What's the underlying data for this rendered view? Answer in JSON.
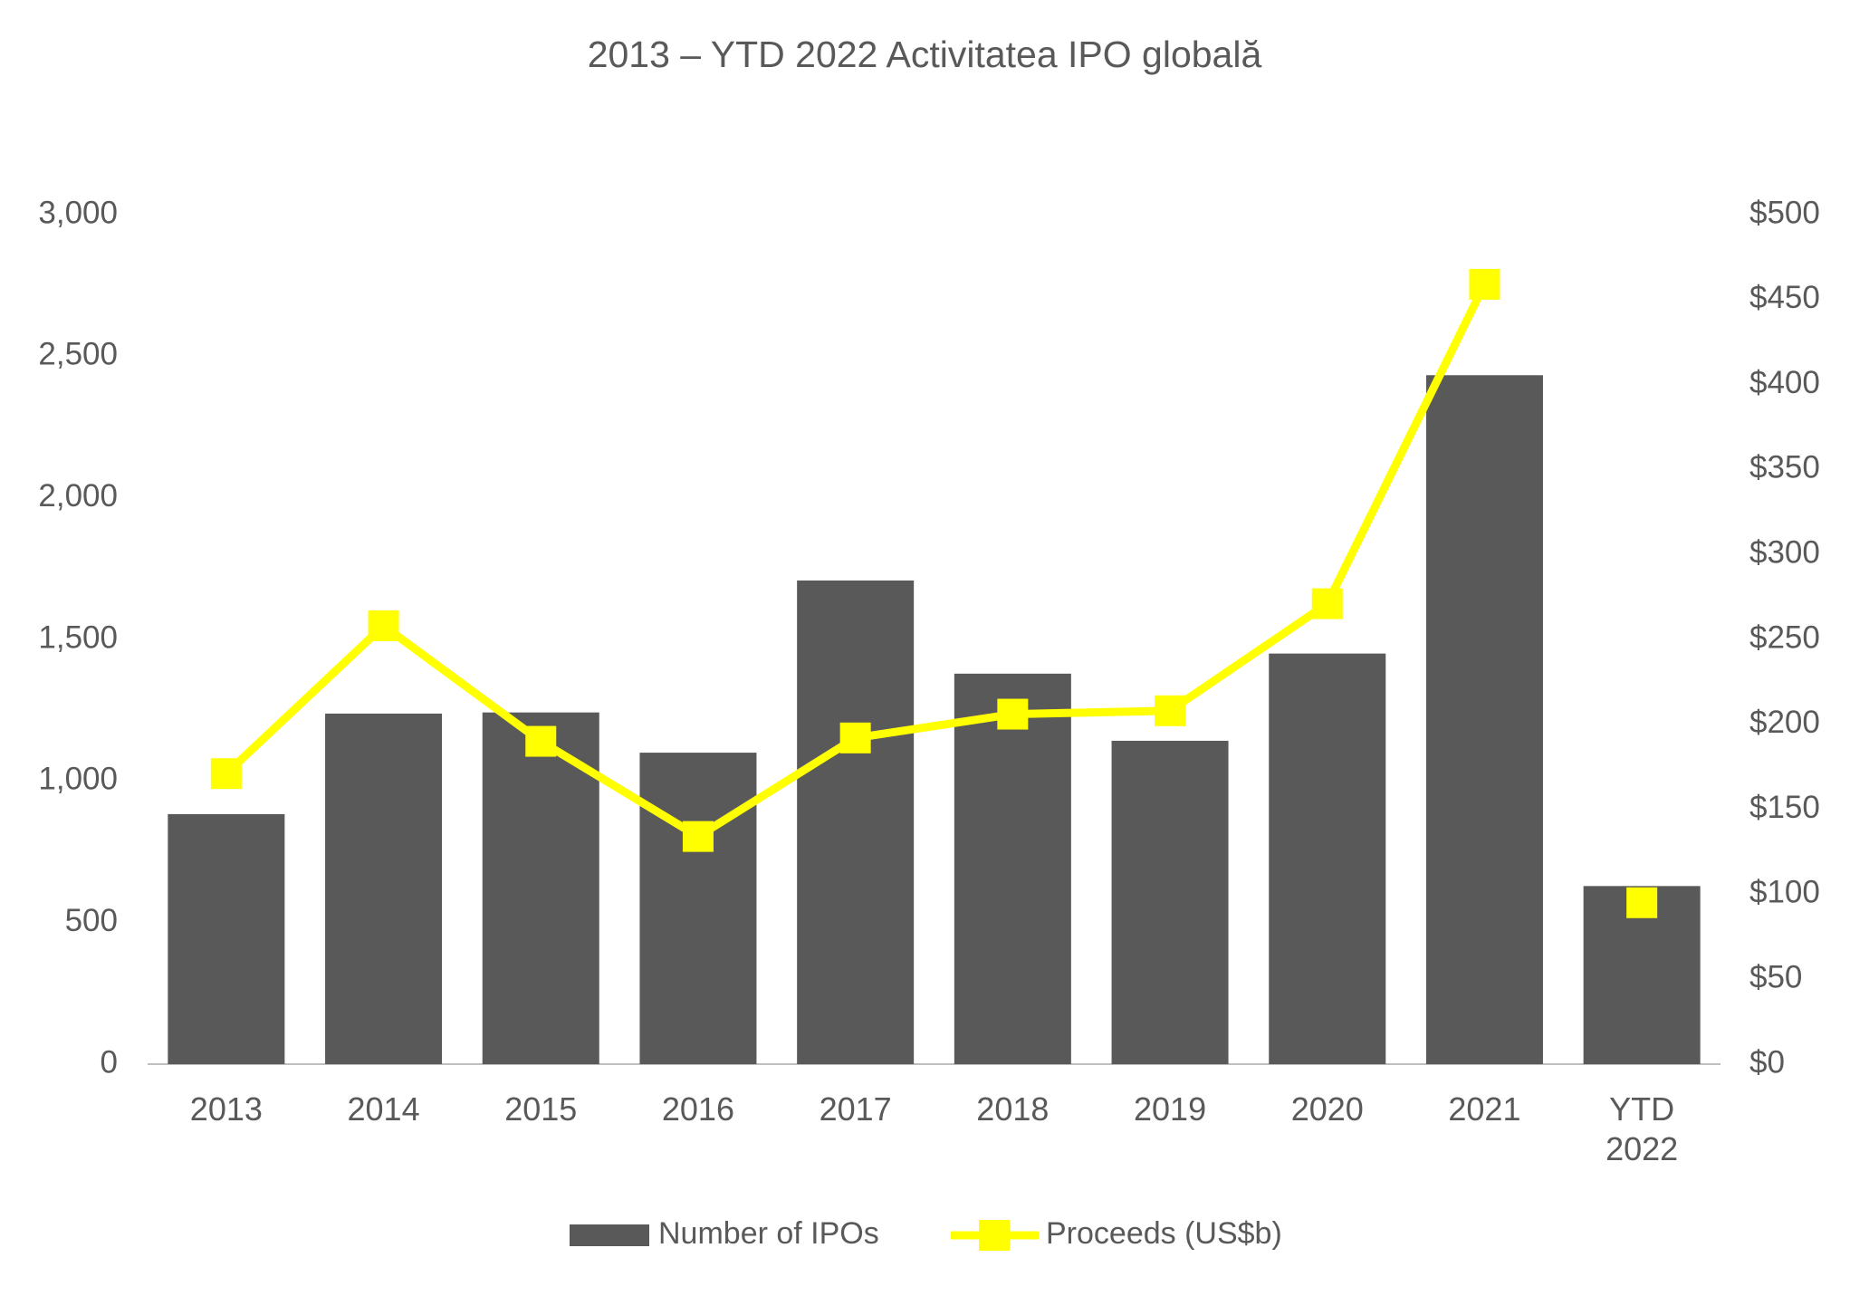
{
  "chart_data": {
    "type": "bar",
    "title": "2013 – YTD 2022 Activitatea IPO globală",
    "categories": [
      "2013",
      "2014",
      "2015",
      "2016",
      "2017",
      "2018",
      "2019",
      "2020",
      "2021",
      "YTD 2022"
    ],
    "series": [
      {
        "name": "Number of IPOs",
        "type": "bar",
        "color": "#595959",
        "values": [
          883,
          1238,
          1242,
          1100,
          1708,
          1379,
          1142,
          1450,
          2433,
          629
        ]
      },
      {
        "name": "Proceeds (US$b)",
        "type": "line",
        "axis": "y2",
        "color": "#ffff00",
        "values": [
          171,
          258,
          190,
          134,
          192,
          206,
          208,
          271,
          459,
          95
        ]
      }
    ],
    "ylim": [
      0,
      3000
    ],
    "yticks": [
      0,
      500,
      {
        "value": 1000,
        "label": "1,000"
      },
      {
        "value": 1500,
        "label": "1,500"
      },
      {
        "value": 2000,
        "label": "2,000"
      },
      {
        "value": 2500,
        "label": "2,500"
      },
      {
        "value": 3000,
        "label": "3,000"
      }
    ],
    "y2lim": [
      0,
      500
    ],
    "y2ticks": [
      {
        "value": 0,
        "label": "$0"
      },
      {
        "value": 50,
        "label": "$50"
      },
      {
        "value": 100,
        "label": "$100"
      },
      {
        "value": 150,
        "label": "$150"
      },
      {
        "value": 200,
        "label": "$200"
      },
      {
        "value": 250,
        "label": "$250"
      },
      {
        "value": 300,
        "label": "$300"
      },
      {
        "value": 350,
        "label": "$350"
      },
      {
        "value": 400,
        "label": "$400"
      },
      {
        "value": 450,
        "label": "$450"
      },
      {
        "value": 500,
        "label": "$500"
      }
    ],
    "legend": "bottom"
  }
}
